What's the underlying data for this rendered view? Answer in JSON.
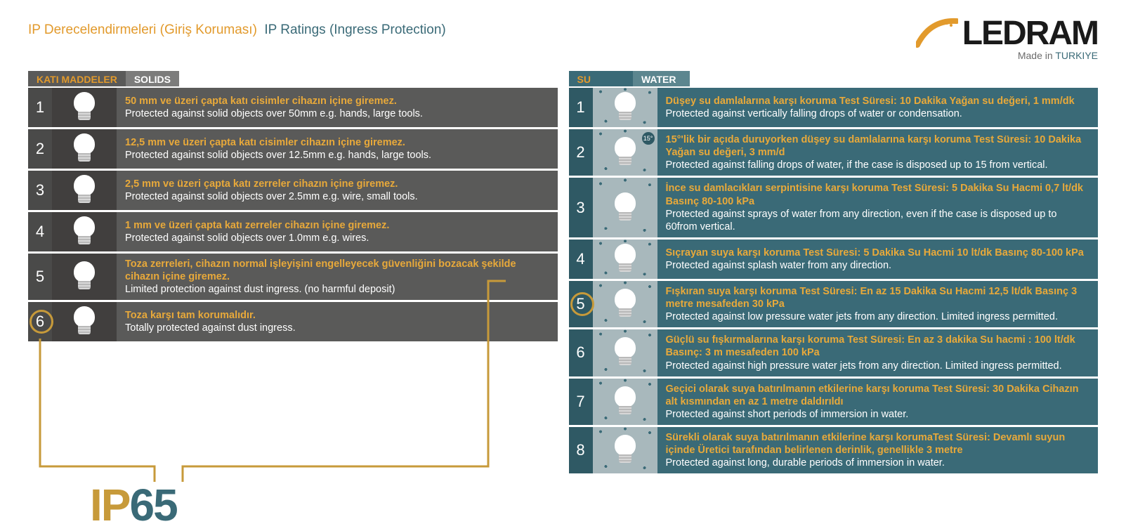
{
  "header": {
    "title_tr": "IP Derecelendirmeleri (Giriş Koruması)",
    "title_en": "IP Ratings (Ingress Protection)",
    "logo_text": "LEDRAM",
    "madein_prefix": "Made in ",
    "madein_country": "TURKIYE"
  },
  "colors": {
    "accent": "#e29a2c",
    "accent_dark": "#c79a3a",
    "solids_bg": "#5a5a59",
    "solids_num": "#4a4a49",
    "water_bg": "#3a6a77",
    "water_num": "#2f5964",
    "white": "#ffffff"
  },
  "ip_example": {
    "prefix": "IP",
    "first": "6",
    "second": "5"
  },
  "solids": {
    "tab_tr": "KATI MADDELER",
    "tab_en": "SOLIDS",
    "highlight_index": 6,
    "rows": [
      {
        "n": "1",
        "tr": "50 mm ve üzeri çapta katı cisimler cihazın içine giremez.",
        "en": "Protected against solid objects over 50mm e.g. hands, large tools."
      },
      {
        "n": "2",
        "tr": "12,5 mm ve üzeri çapta katı cisimler cihazın içine giremez.",
        "en": "Protected against solid objects over 12.5mm e.g. hands, large tools."
      },
      {
        "n": "3",
        "tr": "2,5 mm ve üzeri çapta katı zerreler cihazın içine giremez.",
        "en": "Protected against solid objects over 2.5mm e.g. wire, small tools."
      },
      {
        "n": "4",
        "tr": "1 mm ve üzeri çapta katı zerreler cihazın içine giremez.",
        "en": "Protected against solid objects over 1.0mm e.g. wires."
      },
      {
        "n": "5",
        "tr": "Toza zerreleri, cihazın normal işleyişini engelleyecek güvenliğini bozacak şekilde cihazın içine giremez.",
        "en": "Limited protection against dust ingress. (no harmful deposit)"
      },
      {
        "n": "6",
        "tr": "Toza karşı tam korumalıdır.",
        "en": "Totally protected against dust ingress."
      }
    ]
  },
  "water": {
    "tab_tr": "SU",
    "tab_en": "WATER",
    "highlight_index": 5,
    "rows": [
      {
        "n": "1",
        "tr": "Düşey su damlalarına karşı koruma Test Süresi: 10 Dakika Yağan su değeri, 1 mm/dk",
        "en": "Protected against vertically falling drops of water or condensation."
      },
      {
        "n": "2",
        "badge": "15°",
        "tr": "15°'lik bir açıda duruyorken düşey su damlalarına karşı koruma Test Süresi: 10 Dakika Yağan su değeri, 3 mm/d",
        "en": "Protected against falling drops of water, if the case is disposed up to 15 from vertical."
      },
      {
        "n": "3",
        "tr": "İnce su damlacıkları serpintisine karşı koruma Test Süresi: 5 Dakika Su Hacmi 0,7 lt/dk Basınç 80-100 kPa",
        "en": "Protected against sprays of water from any direction, even if the case is disposed up to 60from vertical."
      },
      {
        "n": "4",
        "tr": "Sıçrayan suya karşı koruma Test Süresi: 5 Dakika Su Hacmi 10 lt/dk Basınç 80-100 kPa",
        "en": "Protected against splash water from any direction."
      },
      {
        "n": "5",
        "tr": "Fışkıran suya karşı koruma Test Süresi: En az 15 Dakika Su Hacmi 12,5 lt/dk Basınç 3 metre mesafeden 30 kPa",
        "en": "Protected against low pressure water jets from any direction. Limited ingress permitted."
      },
      {
        "n": "6",
        "tr": "Güçlü su fışkırmalarına karşı koruma Test Süresi: En az 3 dakika Su hacmi : 100 lt/dk Basınç: 3 m mesafeden 100 kPa",
        "en": "Protected against high pressure water jets from any direction. Limited ingress permitted."
      },
      {
        "n": "7",
        "tr": "Geçici olarak suya batırılmanın etkilerine karşı koruma Test Süresi: 30 Dakika Cihazın alt kısmından en az 1 metre daldırıldı",
        "en": "Protected against short periods of immersion in water."
      },
      {
        "n": "8",
        "tr": "Sürekli olarak suya batırılmanın etkilerine karşı korumaTest Süresi: Devamlı suyun içinde Üretici tarafından belirlenen derinlik, genellikle 3 metre",
        "en": "Protected against long, durable periods of immersion in water."
      }
    ]
  }
}
